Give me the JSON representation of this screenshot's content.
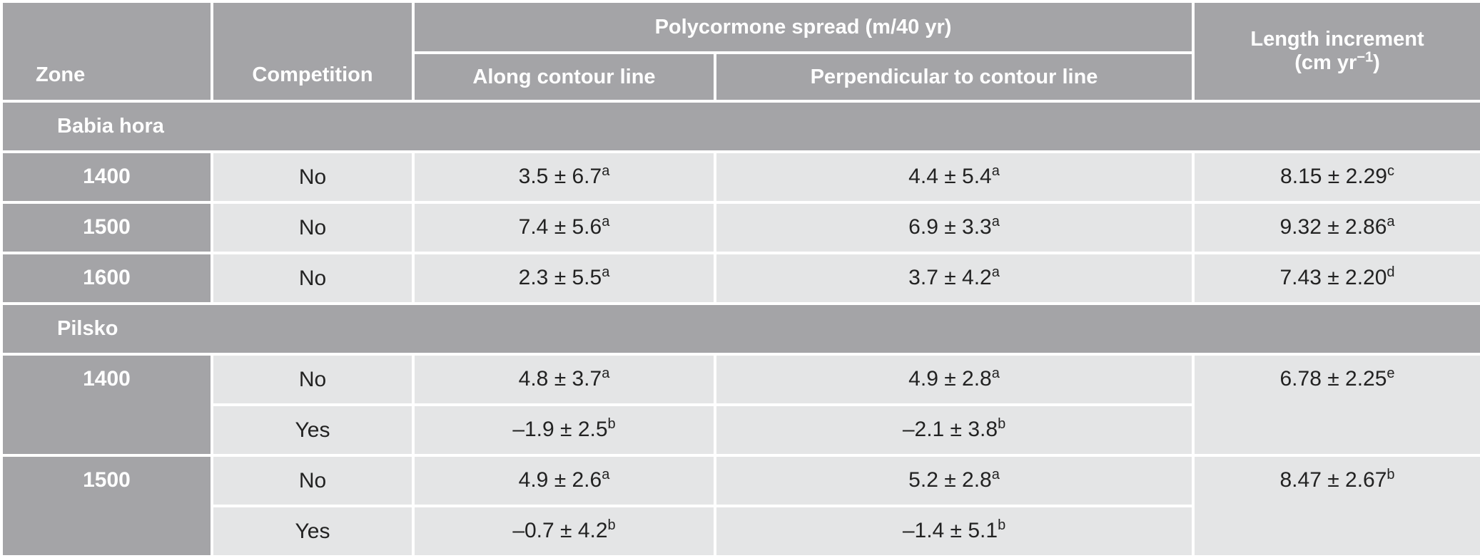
{
  "header": {
    "zone": "Zone",
    "competition": "Competition",
    "spread_group": "Polycormone spread (m/40 yr)",
    "along": "Along contour line",
    "perpendicular": "Perpendicular to contour line",
    "length_line1": "Length increment",
    "length_line2_prefix": "(cm yr",
    "length_line2_exp": "−1",
    "length_line2_suffix": ")"
  },
  "sections": [
    {
      "name": "Babia hora",
      "rows": [
        {
          "zone": "1400",
          "competition": "No",
          "along": "3.5 ± 6.7",
          "along_sup": "a",
          "perp": "4.4 ± 5.4",
          "perp_sup": "a",
          "length": "8.15 ± 2.29",
          "length_sup": "c"
        },
        {
          "zone": "1500",
          "competition": "No",
          "along": "7.4 ± 5.6",
          "along_sup": "a",
          "perp": "6.9 ± 3.3",
          "perp_sup": "a",
          "length": "9.32 ± 2.86",
          "length_sup": "a"
        },
        {
          "zone": "1600",
          "competition": "No",
          "along": "2.3 ± 5.5",
          "along_sup": "a",
          "perp": "3.7 ± 4.2",
          "perp_sup": "a",
          "length": "7.43 ± 2.20",
          "length_sup": "d"
        }
      ]
    },
    {
      "name": "Pilsko",
      "groups": [
        {
          "zone": "1400",
          "length": "6.78 ± 2.25",
          "length_sup": "e",
          "rows": [
            {
              "competition": "No",
              "along": "4.8 ± 3.7",
              "along_sup": "a",
              "perp": "4.9 ± 2.8",
              "perp_sup": "a"
            },
            {
              "competition": "Yes",
              "along": "–1.9 ± 2.5",
              "along_sup": "b",
              "perp": "–2.1 ± 3.8",
              "perp_sup": "b"
            }
          ]
        },
        {
          "zone": "1500",
          "length": "8.47 ± 2.67",
          "length_sup": "b",
          "rows": [
            {
              "competition": "No",
              "along": "4.9 ± 2.6",
              "along_sup": "a",
              "perp": "5.2 ± 2.8",
              "perp_sup": "a"
            },
            {
              "competition": "Yes",
              "along": "–0.7 ± 4.2",
              "along_sup": "b",
              "perp": "–1.4 ± 5.1",
              "perp_sup": "b"
            }
          ]
        }
      ]
    }
  ]
}
